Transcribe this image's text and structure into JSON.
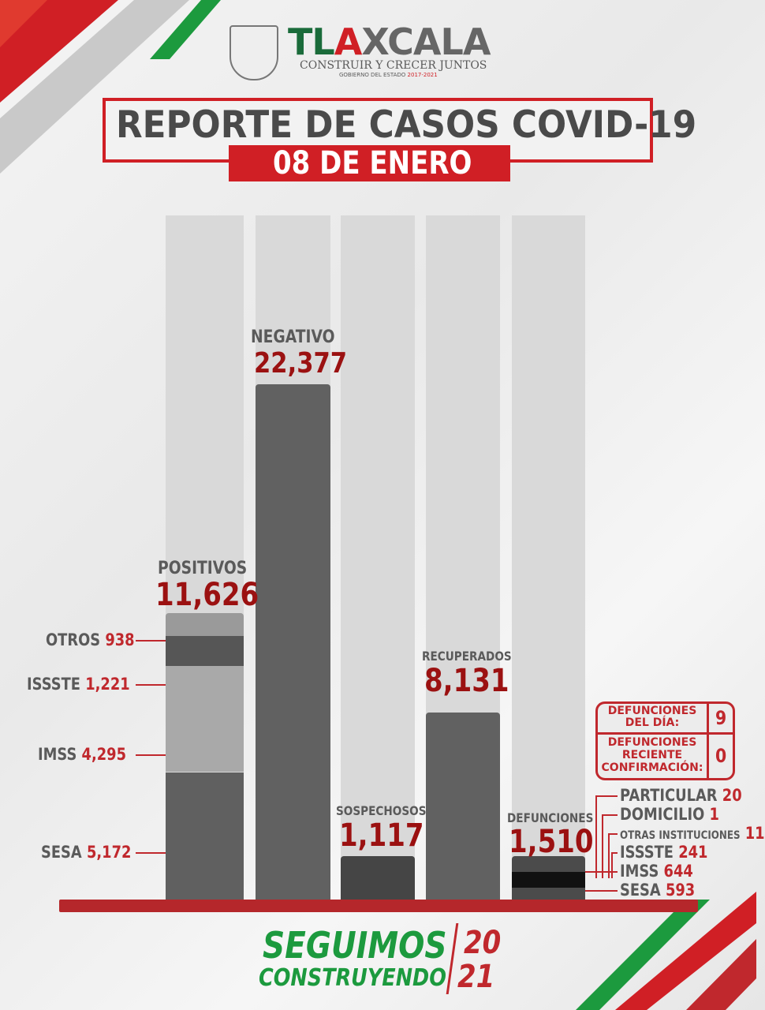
{
  "logo": {
    "name": "TLAXCALA",
    "tagline": "CONSTRUIR Y CRECER JUNTOS",
    "sub": "GOBIERNO DEL ESTADO",
    "years": "2017-2021"
  },
  "header": {
    "title": "REPORTE DE CASOS COVID-19",
    "date": "08 DE ENERO"
  },
  "colors": {
    "accent_red": "#d01f25",
    "value_red": "#9b1111",
    "bar_dark": "#616161",
    "bar_bg": "#d9d9d9",
    "green": "#1c9a3e"
  },
  "chart_data": {
    "type": "bar",
    "categories": [
      "POSITIVOS",
      "NEGATIVO",
      "SOSPECHOSOS",
      "RECUPERADOS",
      "DEFUNCIONES"
    ],
    "values": [
      11626,
      22377,
      1117,
      8131,
      1510
    ],
    "value_labels": [
      "11,626",
      "22,377",
      "1,117",
      "8,131",
      "1,510"
    ],
    "positivos_breakdown": [
      {
        "name": "SESA",
        "value": 5172,
        "label": "5,172",
        "color": "#606060"
      },
      {
        "name": "IMSS",
        "value": 4295,
        "label": "4,295",
        "color": "#a9a9a9"
      },
      {
        "name": "ISSSTE",
        "value": 1221,
        "label": "1,221",
        "color": "#565656"
      },
      {
        "name": "OTROS",
        "value": 938,
        "label": "938",
        "color": "#9a9a9a"
      }
    ],
    "defunciones_breakdown": [
      {
        "name": "SESA",
        "value": 593
      },
      {
        "name": "IMSS",
        "value": 644
      },
      {
        "name": "ISSSTE",
        "value": 241
      },
      {
        "name": "OTRAS INSTITUCIONES",
        "value": 11
      },
      {
        "name": "DOMICILIO",
        "value": 1
      },
      {
        "name": "PARTICULAR",
        "value": 20
      }
    ]
  },
  "defunciones_box": {
    "dia_label": "DEFUNCIONES DEL DÍA:",
    "dia_value": "9",
    "reciente_label": "DEFUNCIONES RECIENTE CONFIRMACIÓN:",
    "reciente_value": "0"
  },
  "footer": {
    "line1": "SEGUIMOS",
    "line2": "CONSTRUYENDO",
    "year_top": "20",
    "year_bottom": "21"
  }
}
